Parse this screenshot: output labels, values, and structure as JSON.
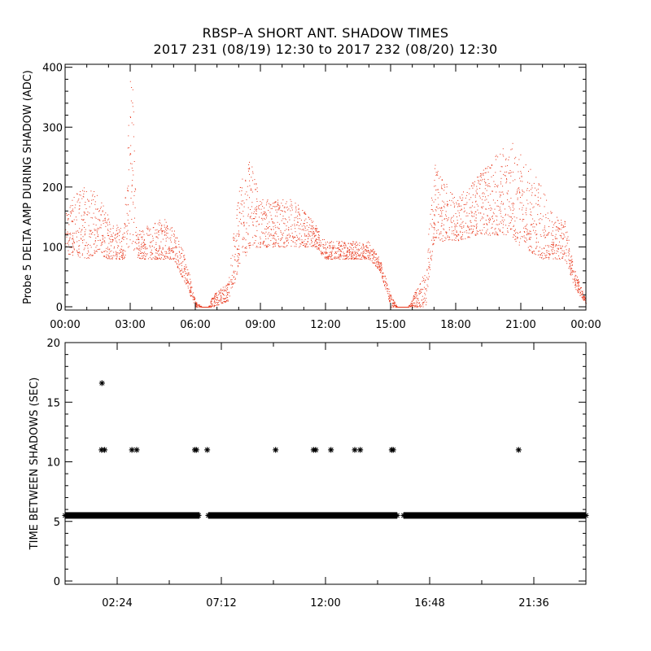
{
  "title_line1": "RBSP–A SHORT ANT. SHADOW TIMES",
  "title_line2": "2017 231 (08/19) 12:30 to 2017 232 (08/20) 12:30",
  "colors": {
    "top_series": "#e8361a",
    "bottom_series": "#000000",
    "axes": "#000000"
  },
  "chart_data": [
    {
      "type": "scatter",
      "ylabel": "Probe 5 DELTA AMP DURING SHADOW (ADC)",
      "xlabel": "",
      "xlim_hours": [
        0,
        24
      ],
      "ylim": [
        0,
        405
      ],
      "x_ticks": [
        "00:00",
        "03:00",
        "06:00",
        "09:00",
        "12:00",
        "15:00",
        "18:00",
        "21:00",
        "00:00"
      ],
      "y_ticks": [
        0,
        100,
        200,
        300,
        400
      ],
      "series": [
        {
          "color": "#e8361a",
          "envelope_hours": [
            0,
            0.5,
            1,
            1.5,
            2,
            2.7,
            3.0,
            3.1,
            3.3,
            3.5,
            4.5,
            5.0,
            5.5,
            6.0,
            6.3,
            6.6,
            6.8,
            7.5,
            8.0,
            8.5,
            9.0,
            9.5,
            10.5,
            11.5,
            12.0,
            13.0,
            14.0,
            14.5,
            15.0,
            15.3,
            15.8,
            16.3,
            16.6,
            17.0,
            18.0,
            19.0,
            20.0,
            20.5,
            21.0,
            22.0,
            22.5,
            23.0,
            23.5,
            24.0
          ],
          "lower": [
            90,
            85,
            80,
            90,
            80,
            80,
            100,
            100,
            80,
            80,
            80,
            80,
            40,
            0,
            0,
            0,
            0,
            10,
            60,
            100,
            100,
            100,
            100,
            100,
            80,
            80,
            80,
            60,
            0,
            0,
            0,
            0,
            0,
            110,
            110,
            120,
            120,
            120,
            100,
            80,
            80,
            80,
            30,
            5
          ],
          "upper": [
            160,
            190,
            205,
            190,
            150,
            130,
            400,
            400,
            130,
            130,
            150,
            130,
            90,
            10,
            0,
            0,
            20,
            40,
            210,
            250,
            180,
            180,
            180,
            140,
            110,
            110,
            110,
            80,
            20,
            0,
            0,
            40,
            60,
            240,
            180,
            220,
            260,
            280,
            260,
            200,
            150,
            150,
            60,
            10
          ]
        }
      ]
    },
    {
      "type": "scatter",
      "ylabel": "TIME BETWEEN SHADOWS (SEC)",
      "xlabel": "",
      "xlim_hours": [
        0,
        24
      ],
      "ylim": [
        0,
        20
      ],
      "x_ticks": [
        "02:24",
        "07:12",
        "12:00",
        "16:48",
        "21:36"
      ],
      "y_ticks": [
        0,
        5,
        10,
        15,
        20
      ],
      "series": [
        {
          "color": "#000000",
          "baseline_value": 5.5,
          "baseline_segments_hours": [
            [
              0,
              6.2
            ],
            [
              6.6,
              15.3
            ],
            [
              15.6,
              24
            ]
          ],
          "outliers": [
            [
              1.7,
              16.6
            ],
            [
              1.68,
              11.0
            ],
            [
              1.82,
              11.0
            ],
            [
              3.08,
              11.0
            ],
            [
              3.3,
              11.0
            ],
            [
              5.98,
              11.0
            ],
            [
              6.05,
              11.0
            ],
            [
              6.55,
              11.0
            ],
            [
              9.7,
              11.0
            ],
            [
              11.45,
              11.0
            ],
            [
              11.55,
              11.0
            ],
            [
              12.25,
              11.0
            ],
            [
              13.35,
              11.0
            ],
            [
              13.6,
              11.0
            ],
            [
              15.05,
              11.0
            ],
            [
              15.12,
              11.0
            ],
            [
              20.9,
              11.0
            ]
          ]
        }
      ]
    }
  ]
}
